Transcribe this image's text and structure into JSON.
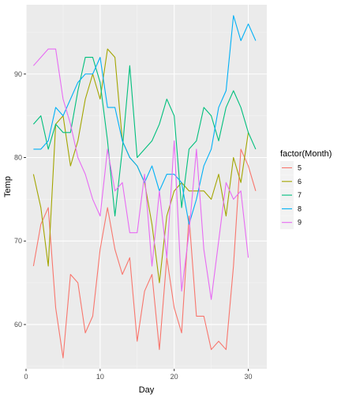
{
  "chart_data": {
    "type": "line",
    "xlabel": "Day",
    "ylabel": "Temp",
    "xlim": [
      0,
      32.5
    ],
    "ylim": [
      54.7,
      98.3
    ],
    "xticks": [
      0,
      10,
      20,
      30
    ],
    "yticks": [
      60,
      70,
      80,
      90
    ],
    "grid": true,
    "legend": {
      "title": "factor(Month)",
      "position": "right"
    },
    "series": [
      {
        "name": "5",
        "color": "#F8766D",
        "x": [
          1,
          2,
          3,
          4,
          5,
          6,
          7,
          8,
          9,
          10,
          11,
          12,
          13,
          14,
          15,
          16,
          17,
          18,
          19,
          20,
          21,
          22,
          23,
          24,
          25,
          26,
          27,
          28,
          29,
          30,
          31
        ],
        "values": [
          67,
          72,
          74,
          62,
          56,
          66,
          65,
          59,
          61,
          69,
          74,
          69,
          66,
          68,
          58,
          64,
          66,
          57,
          68,
          62,
          59,
          73,
          61,
          61,
          57,
          58,
          57,
          67,
          81,
          79,
          76
        ]
      },
      {
        "name": "6",
        "color": "#A3A500",
        "x": [
          1,
          2,
          3,
          4,
          5,
          6,
          7,
          8,
          9,
          10,
          11,
          12,
          13,
          14,
          15,
          16,
          17,
          18,
          19,
          20,
          21,
          22,
          23,
          24,
          25,
          26,
          27,
          28,
          29,
          30
        ],
        "values": [
          78,
          74,
          67,
          84,
          85,
          79,
          82,
          87,
          90,
          87,
          93,
          92,
          82,
          80,
          79,
          77,
          72,
          65,
          73,
          76,
          77,
          76,
          76,
          76,
          75,
          78,
          73,
          80,
          77,
          83
        ]
      },
      {
        "name": "7",
        "color": "#00BF7D",
        "x": [
          1,
          2,
          3,
          4,
          5,
          6,
          7,
          8,
          9,
          10,
          11,
          12,
          13,
          14,
          15,
          16,
          17,
          18,
          19,
          20,
          21,
          22,
          23,
          24,
          25,
          26,
          27,
          28,
          29,
          30,
          31
        ],
        "values": [
          84,
          85,
          81,
          84,
          83,
          83,
          88,
          92,
          92,
          89,
          82,
          73,
          81,
          91,
          80,
          81,
          82,
          84,
          87,
          85,
          74,
          81,
          82,
          86,
          85,
          82,
          86,
          88,
          86,
          83,
          81
        ]
      },
      {
        "name": "8",
        "color": "#00B0F6",
        "x": [
          1,
          2,
          3,
          4,
          5,
          6,
          7,
          8,
          9,
          10,
          11,
          12,
          13,
          14,
          15,
          16,
          17,
          18,
          19,
          20,
          21,
          22,
          23,
          24,
          25,
          26,
          27,
          28,
          29,
          30,
          31
        ],
        "values": [
          81,
          81,
          82,
          86,
          85,
          87,
          89,
          90,
          90,
          92,
          86,
          86,
          82,
          80,
          79,
          77,
          79,
          76,
          78,
          78,
          77,
          72,
          75,
          79,
          81,
          86,
          88,
          97,
          94,
          96,
          94
        ]
      },
      {
        "name": "9",
        "color": "#E76BF3",
        "x": [
          1,
          2,
          3,
          4,
          5,
          6,
          7,
          8,
          9,
          10,
          11,
          12,
          13,
          14,
          15,
          16,
          17,
          18,
          19,
          20,
          21,
          22,
          23,
          24,
          25,
          26,
          27,
          28,
          29,
          30
        ],
        "values": [
          91,
          92,
          93,
          93,
          87,
          84,
          80,
          78,
          75,
          73,
          81,
          76,
          77,
          71,
          71,
          78,
          67,
          76,
          68,
          82,
          64,
          71,
          81,
          69,
          63,
          70,
          77,
          75,
          76,
          68
        ]
      }
    ]
  }
}
